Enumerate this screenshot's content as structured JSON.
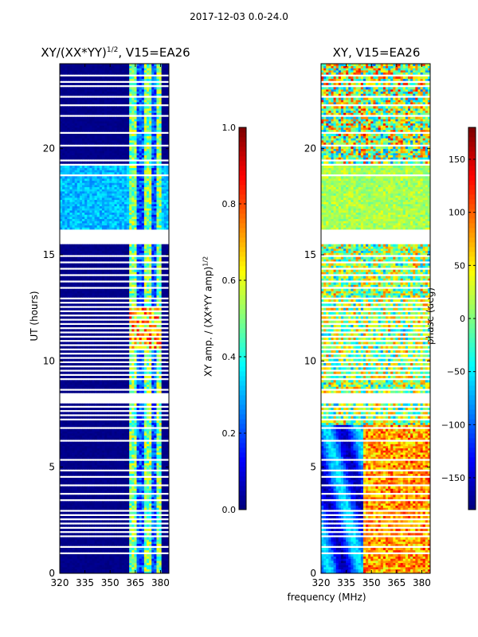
{
  "chart_data": [
    {
      "type": "heatmap",
      "title": "XY/(XX*YY)^{1/2}, V15=EA26",
      "title_main": "XY/(XX*YY)",
      "title_exp": "1/2",
      "title_tail": ", V15=EA26",
      "xlabel": "",
      "ylabel": "UT (hours)",
      "xlim": [
        320,
        385
      ],
      "ylim": [
        0,
        24
      ],
      "xticks": [
        "320",
        "335",
        "350",
        "365",
        "380"
      ],
      "yticks": [
        "0",
        "5",
        "10",
        "15",
        "20"
      ],
      "colorbar": {
        "label": "XY amp. / (XX*YY amp)^{1/2}",
        "label_main": "XY amp. / (XX*YY amp)",
        "label_exp": "1/2",
        "range": [
          0.0,
          1.0
        ],
        "ticks": [
          "0.0",
          "0.2",
          "0.4",
          "0.6",
          "0.8",
          "1.0"
        ]
      },
      "description_values": {
        "background_value": 0.0,
        "active_band_MHz": [
          362,
          380
        ],
        "high_region_UT": [
          16.2,
          19.2
        ]
      }
    },
    {
      "type": "heatmap",
      "title": "XY, V15=EA26",
      "xlabel": "frequency (MHz)",
      "ylabel": "",
      "xlim": [
        320,
        385
      ],
      "ylim": [
        0,
        24
      ],
      "xticks": [
        "320",
        "335",
        "350",
        "365",
        "380"
      ],
      "yticks": [
        "0",
        "5",
        "10",
        "15",
        "20"
      ],
      "colorbar": {
        "label": "phase (deg)",
        "range": [
          -180,
          180
        ],
        "ticks": [
          "−150",
          "−100",
          "−50",
          "0",
          "50",
          "100",
          "150"
        ]
      }
    }
  ],
  "suptitle": "2017-12-03 0.0-24.0",
  "gaps_UT": [
    [
      0.95,
      1.05
    ],
    [
      1.22,
      1.3
    ],
    [
      1.7,
      1.78
    ],
    [
      1.92,
      2.0
    ],
    [
      2.12,
      2.18
    ],
    [
      2.3,
      2.36
    ],
    [
      2.5,
      2.56
    ],
    [
      2.72,
      2.78
    ],
    [
      2.95,
      3.02
    ],
    [
      3.18,
      3.24
    ],
    [
      3.4,
      3.46
    ],
    [
      3.7,
      3.76
    ],
    [
      4.1,
      4.16
    ],
    [
      4.5,
      4.56
    ],
    [
      4.85,
      4.92
    ],
    [
      5.3,
      5.36
    ],
    [
      5.78,
      5.84
    ],
    [
      6.2,
      6.26
    ],
    [
      6.82,
      6.92
    ],
    [
      7.2,
      7.26
    ],
    [
      7.45,
      7.5
    ],
    [
      7.62,
      7.68
    ],
    [
      7.85,
      7.9
    ],
    [
      8.05,
      8.5
    ],
    [
      8.65,
      8.72
    ],
    [
      8.9,
      8.95
    ],
    [
      9.1,
      9.16
    ],
    [
      9.35,
      9.4
    ],
    [
      9.55,
      9.6
    ],
    [
      9.75,
      9.8
    ],
    [
      9.95,
      10.0
    ],
    [
      10.15,
      10.2
    ],
    [
      10.35,
      10.4
    ],
    [
      10.55,
      10.6
    ],
    [
      10.75,
      10.8
    ],
    [
      10.95,
      11.0
    ],
    [
      11.15,
      11.2
    ],
    [
      11.35,
      11.4
    ],
    [
      11.55,
      11.6
    ],
    [
      11.75,
      11.8
    ],
    [
      11.95,
      12.0
    ],
    [
      12.15,
      12.2
    ],
    [
      12.35,
      12.4
    ],
    [
      12.55,
      12.6
    ],
    [
      12.75,
      12.8
    ],
    [
      12.95,
      13.0
    ],
    [
      13.2,
      13.25
    ],
    [
      13.45,
      13.5
    ],
    [
      13.75,
      13.8
    ],
    [
      14.05,
      14.1
    ],
    [
      14.35,
      14.4
    ],
    [
      14.65,
      14.7
    ],
    [
      14.95,
      15.0
    ],
    [
      15.2,
      15.25
    ],
    [
      15.55,
      16.2
    ],
    [
      18.75,
      18.8
    ],
    [
      19.2,
      19.28
    ],
    [
      19.45,
      19.5
    ],
    [
      20.15,
      20.22
    ],
    [
      20.72,
      20.8
    ],
    [
      21.55,
      21.6
    ],
    [
      22.05,
      22.1
    ],
    [
      22.4,
      22.46
    ],
    [
      22.9,
      22.96
    ],
    [
      23.15,
      23.22
    ],
    [
      23.45,
      23.52
    ]
  ]
}
